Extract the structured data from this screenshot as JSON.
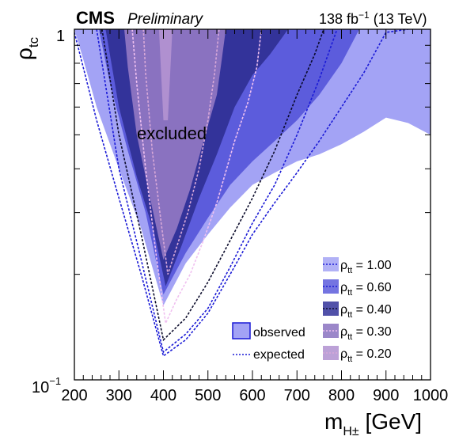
{
  "header": {
    "experiment": "CMS",
    "status": "Preliminary",
    "lumi_prefix": "138 fb",
    "lumi_sup": "−1",
    "lumi_suffix": " (13 TeV)"
  },
  "chart_data": {
    "type": "area",
    "x_axis": {
      "label_main": "m",
      "label_sub": "H±",
      "label_unit": " [GeV]",
      "range": [
        200,
        1000
      ],
      "ticks": [
        200,
        300,
        400,
        500,
        600,
        700,
        800,
        900,
        1000
      ],
      "tick_labels": [
        "200",
        "300",
        "400",
        "500",
        "600",
        "700",
        "800",
        "900",
        "1000"
      ]
    },
    "y_axis": {
      "label_main": "ρ",
      "label_sub": "tc",
      "scale": "log",
      "range": [
        0.1,
        1
      ],
      "tick_labels": [
        {
          "value": 1,
          "text": "1"
        },
        {
          "value": 0.1,
          "base": "10",
          "exp": "−1"
        }
      ]
    },
    "annotation": "excluded",
    "style_legend": {
      "observed": "observed",
      "expected": "expected"
    },
    "series": [
      {
        "name": "ρ_tt = 1.00",
        "label_base": "ρ",
        "label_sub": "tt",
        "label_value": " = 1.00",
        "fill": "#a3a3f5",
        "line": "#1a1ad6",
        "observed": [
          [
            200,
            1.0
          ],
          [
            220,
            0.82
          ],
          [
            250,
            0.6
          ],
          [
            300,
            0.4
          ],
          [
            350,
            0.27
          ],
          [
            400,
            0.163
          ],
          [
            450,
            0.215
          ],
          [
            500,
            0.26
          ],
          [
            550,
            0.31
          ],
          [
            600,
            0.36
          ],
          [
            650,
            0.39
          ],
          [
            700,
            0.42
          ],
          [
            750,
            0.44
          ],
          [
            800,
            0.47
          ],
          [
            850,
            0.51
          ],
          [
            900,
            0.56
          ],
          [
            950,
            0.54
          ],
          [
            1000,
            0.5
          ]
        ],
        "expected": [
          [
            200,
            0.98
          ],
          [
            250,
            0.55
          ],
          [
            300,
            0.33
          ],
          [
            350,
            0.2
          ],
          [
            400,
            0.117
          ],
          [
            450,
            0.13
          ],
          [
            500,
            0.155
          ],
          [
            550,
            0.2
          ],
          [
            600,
            0.26
          ],
          [
            650,
            0.32
          ],
          [
            700,
            0.39
          ],
          [
            750,
            0.48
          ],
          [
            800,
            0.6
          ],
          [
            850,
            0.75
          ],
          [
            900,
            0.98
          ],
          [
            950,
            1.0
          ]
        ]
      },
      {
        "name": "ρ_tt = 0.60",
        "label_base": "ρ",
        "label_sub": "tt",
        "label_value": " = 0.60",
        "fill": "#5c5cdc",
        "line": "#1a1ad6",
        "observed": [
          [
            255,
            1.0
          ],
          [
            280,
            0.7
          ],
          [
            320,
            0.45
          ],
          [
            360,
            0.3
          ],
          [
            400,
            0.175
          ],
          [
            450,
            0.23
          ],
          [
            500,
            0.29
          ],
          [
            550,
            0.36
          ],
          [
            600,
            0.42
          ],
          [
            650,
            0.48
          ],
          [
            700,
            0.55
          ],
          [
            750,
            0.65
          ],
          [
            800,
            0.8
          ],
          [
            840,
            1.0
          ]
        ],
        "expected": [
          [
            250,
            1.0
          ],
          [
            300,
            0.4
          ],
          [
            350,
            0.22
          ],
          [
            400,
            0.12
          ],
          [
            450,
            0.135
          ],
          [
            500,
            0.16
          ],
          [
            550,
            0.21
          ],
          [
            600,
            0.28
          ],
          [
            650,
            0.36
          ],
          [
            700,
            0.5
          ],
          [
            750,
            0.72
          ],
          [
            790,
            1.0
          ]
        ]
      },
      {
        "name": "ρ_tt = 0.40",
        "label_base": "ρ",
        "label_sub": "tt",
        "label_value": " = 0.40",
        "fill": "#33339a",
        "line": "#0a0a2a",
        "observed": [
          [
            270,
            1.0
          ],
          [
            300,
            0.6
          ],
          [
            340,
            0.38
          ],
          [
            380,
            0.26
          ],
          [
            405,
            0.185
          ],
          [
            440,
            0.24
          ],
          [
            480,
            0.33
          ],
          [
            520,
            0.44
          ],
          [
            560,
            0.6
          ],
          [
            600,
            0.74
          ],
          [
            640,
            0.85
          ],
          [
            680,
            1.0
          ]
        ],
        "expected": [
          [
            262,
            1.0
          ],
          [
            300,
            0.5
          ],
          [
            350,
            0.26
          ],
          [
            400,
            0.13
          ],
          [
            450,
            0.15
          ],
          [
            500,
            0.19
          ],
          [
            550,
            0.25
          ],
          [
            600,
            0.33
          ],
          [
            650,
            0.45
          ],
          [
            700,
            0.65
          ],
          [
            740,
            0.85
          ],
          [
            760,
            1.0
          ]
        ]
      },
      {
        "name": "ρ_tt = 0.30",
        "label_base": "ρ",
        "label_sub": "tt",
        "label_value": " = 0.30",
        "fill": "#8a72c0",
        "line": "#f0c0f0",
        "observed": [
          [
            312,
            1.0
          ],
          [
            320,
            0.78
          ],
          [
            340,
            0.5
          ],
          [
            370,
            0.33
          ],
          [
            400,
            0.22
          ],
          [
            430,
            0.27
          ],
          [
            460,
            0.35
          ],
          [
            490,
            0.48
          ],
          [
            520,
            0.65
          ],
          [
            530,
            0.8
          ],
          [
            540,
            1.0
          ]
        ],
        "expected": [
          [
            330,
            1.0
          ],
          [
            340,
            0.7
          ],
          [
            360,
            0.4
          ],
          [
            385,
            0.22
          ],
          [
            405,
            0.145
          ],
          [
            430,
            0.17
          ],
          [
            460,
            0.2
          ],
          [
            490,
            0.25
          ],
          [
            520,
            0.32
          ],
          [
            560,
            0.48
          ],
          [
            590,
            0.62
          ],
          [
            610,
            0.78
          ],
          [
            620,
            1.0
          ]
        ]
      },
      {
        "name": "ρ_tt = 0.20",
        "label_base": "ρ",
        "label_sub": "tt",
        "label_value": " = 0.20",
        "fill": "#b090d0",
        "line": "#d8a8d8",
        "observed": [
          [
            390,
            1.0
          ],
          [
            400,
            0.55
          ],
          [
            410,
            0.55
          ],
          [
            420,
            1.0
          ]
        ],
        "expected": [
          [
            355,
            1.0
          ],
          [
            360,
            0.75
          ],
          [
            375,
            0.45
          ],
          [
            395,
            0.28
          ],
          [
            410,
            0.2
          ],
          [
            430,
            0.24
          ],
          [
            455,
            0.3
          ],
          [
            480,
            0.4
          ],
          [
            500,
            0.55
          ],
          [
            515,
            0.75
          ],
          [
            525,
            1.0
          ]
        ]
      }
    ],
    "grid": false,
    "legend_position": "bottom-right"
  }
}
